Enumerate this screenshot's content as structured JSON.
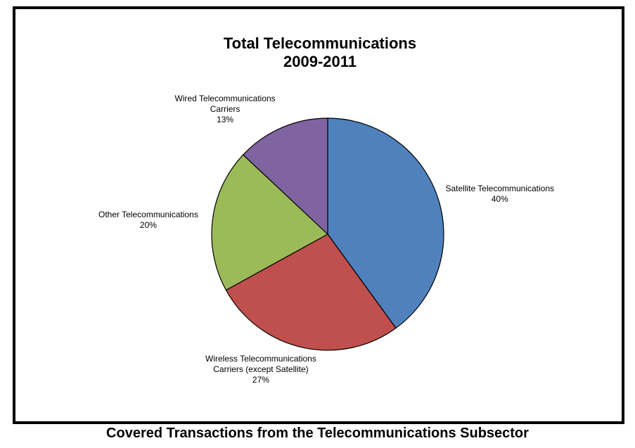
{
  "caption": "Covered Transactions from the Telecommunications Subsector",
  "chart_data": {
    "type": "pie",
    "title_lines": [
      "Total Telecommunications",
      "2009-2011"
    ],
    "slices": [
      {
        "label_lines": [
          "Satellite Telecommunications"
        ],
        "pct_label": "40%",
        "value": 40,
        "color": "#4F81BD"
      },
      {
        "label_lines": [
          "Wireless Telecommunications",
          "Carriers (except Satellite)"
        ],
        "pct_label": "27%",
        "value": 27,
        "color": "#C0504D"
      },
      {
        "label_lines": [
          "Other Telecommunications"
        ],
        "pct_label": "20%",
        "value": 20,
        "color": "#9BBB59"
      },
      {
        "label_lines": [
          "Wired Telecommunications",
          "Carriers"
        ],
        "pct_label": "13%",
        "value": 13,
        "color": "#8064A2"
      }
    ],
    "start": "12 o'clock",
    "direction": "clockwise",
    "legend": "none"
  }
}
